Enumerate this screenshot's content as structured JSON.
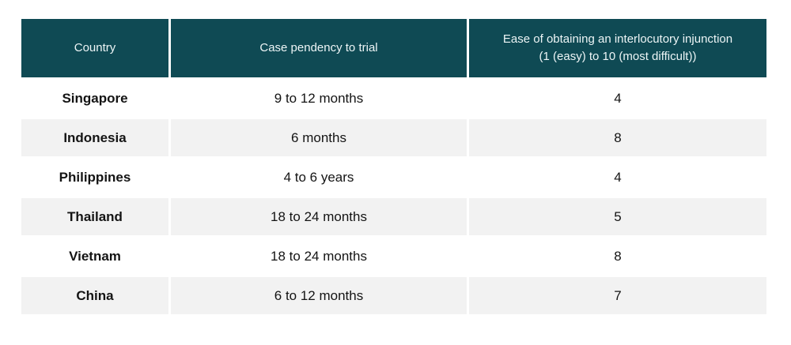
{
  "chart_data": {
    "type": "table",
    "columns": [
      "Country",
      "Case pendency to trial",
      "Ease of obtaining an interlocutory injunction\n(1 (easy) to 10 (most difficult))"
    ],
    "rows": [
      [
        "Singapore",
        "9 to 12 months",
        "4"
      ],
      [
        "Indonesia",
        "6 months",
        "8"
      ],
      [
        "Philippines",
        "4 to 6 years",
        "4"
      ],
      [
        "Thailand",
        "18 to 24 months",
        "5"
      ],
      [
        "Vietnam",
        "18 to 24 months",
        "8"
      ],
      [
        "China",
        "6 to 12 months",
        "7"
      ]
    ],
    "layout": {
      "header_position": "top",
      "row_striping": "alternate white and light gray",
      "grid": "off"
    }
  },
  "colors": {
    "header_bg": "#0f4a54",
    "header_text": "#edf5f6",
    "row_alt_bg": "#f2f2f2",
    "row_bg": "#ffffff",
    "body_text": "#141414",
    "page_bg": "#ffffff"
  }
}
